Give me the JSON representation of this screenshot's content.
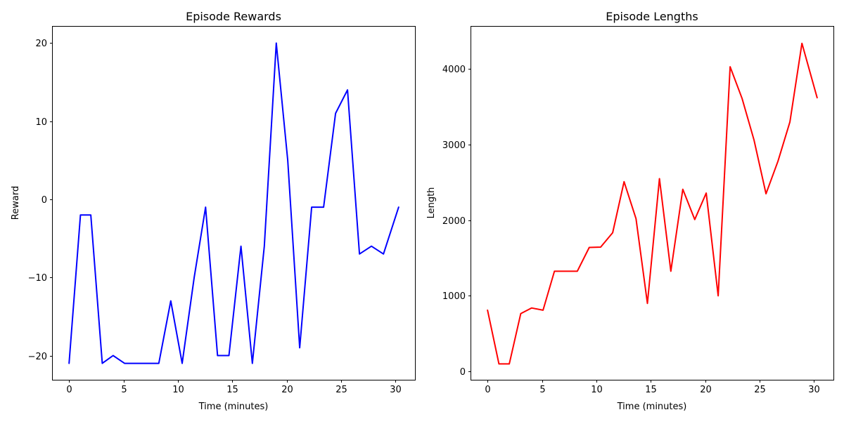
{
  "chart_data": [
    {
      "type": "line",
      "title": "Episode Rewards",
      "xlabel": "Time (minutes)",
      "ylabel": "Reward",
      "xlim": [
        -1.5,
        31.8
      ],
      "ylim": [
        -23.1,
        22.1
      ],
      "xticks": [
        0,
        5,
        10,
        15,
        20,
        25,
        30
      ],
      "xtick_labels": [
        "0",
        "5",
        "10",
        "15",
        "20",
        "25",
        "30"
      ],
      "yticks": [
        -20,
        -10,
        0,
        10,
        20
      ],
      "ytick_labels": [
        "−20",
        "−10",
        "0",
        "10",
        "20"
      ],
      "grid": false,
      "color": "#0000ff",
      "series": [
        {
          "name": "Episode Rewards",
          "x": [
            0,
            1.05,
            2.0,
            3.05,
            4.05,
            5.1,
            6.15,
            7.2,
            8.25,
            9.35,
            10.4,
            11.5,
            12.55,
            13.65,
            14.7,
            15.8,
            16.85,
            17.95,
            19.05,
            20.1,
            21.2,
            22.3,
            23.4,
            24.5,
            25.6,
            26.7,
            27.8,
            28.9,
            30.3
          ],
          "y": [
            -21,
            -2,
            -2,
            -21,
            -20,
            -21,
            -21,
            -21,
            -21,
            -13,
            -21,
            -10,
            -1,
            -20,
            -20,
            -6,
            -21,
            -6,
            20,
            5,
            -19,
            -1,
            -1,
            11,
            14,
            -7,
            -6,
            -7,
            -1
          ]
        }
      ]
    },
    {
      "type": "line",
      "title": "Episode Lengths",
      "xlabel": "Time (minutes)",
      "ylabel": "Length",
      "xlim": [
        -1.5,
        31.8
      ],
      "ylim": [
        -110,
        4560
      ],
      "xticks": [
        0,
        5,
        10,
        15,
        20,
        25,
        30
      ],
      "xtick_labels": [
        "0",
        "5",
        "10",
        "15",
        "20",
        "25",
        "30"
      ],
      "yticks": [
        0,
        1000,
        2000,
        3000,
        4000
      ],
      "ytick_labels": [
        "0",
        "1000",
        "2000",
        "3000",
        "4000"
      ],
      "grid": false,
      "color": "#ff0000",
      "series": [
        {
          "name": "Episode Lengths",
          "x": [
            0,
            1.05,
            2.0,
            3.05,
            4.05,
            5.1,
            6.15,
            7.2,
            8.25,
            9.35,
            10.4,
            11.5,
            12.55,
            13.65,
            14.7,
            15.8,
            16.85,
            17.95,
            19.05,
            20.1,
            21.2,
            22.3,
            23.4,
            24.5,
            25.6,
            26.7,
            27.8,
            28.9,
            30.3
          ],
          "y": [
            810,
            100,
            100,
            765,
            840,
            810,
            1325,
            1325,
            1325,
            1640,
            1645,
            1835,
            2510,
            2020,
            900,
            2550,
            1325,
            2410,
            2010,
            2360,
            1000,
            4030,
            3610,
            3060,
            2350,
            2780,
            3300,
            4340,
            3620
          ]
        }
      ]
    }
  ]
}
